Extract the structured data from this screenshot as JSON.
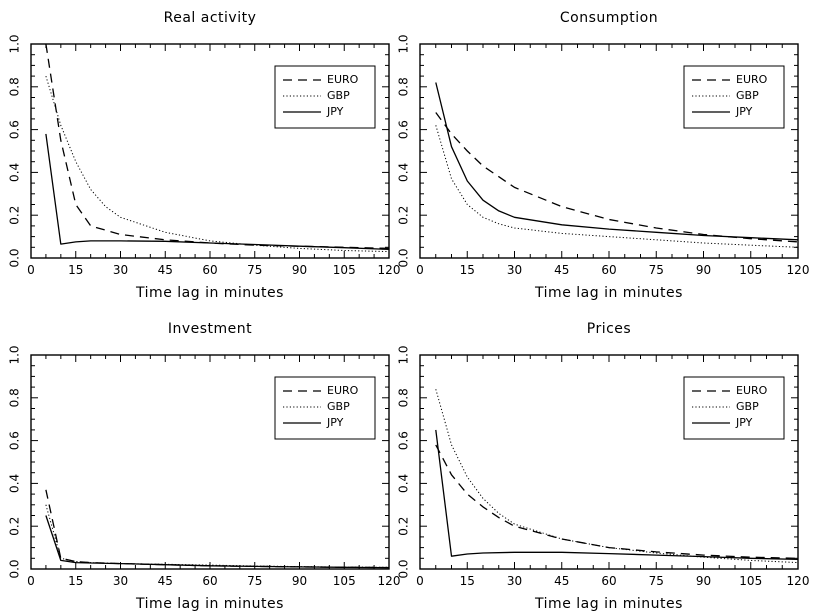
{
  "chart_data": [
    {
      "type": "line",
      "title": "Real activity",
      "xlabel": "Time lag in minutes",
      "ylabel": "",
      "xlim": [
        0,
        120
      ],
      "ylim": [
        0,
        1.0
      ],
      "xticks": [
        "0",
        "15",
        "30",
        "45",
        "60",
        "75",
        "90",
        "105",
        "120"
      ],
      "yticks": [
        "0.0",
        "0.2",
        "0.4",
        "0.6",
        "0.8",
        "1.0"
      ],
      "legend": "top-right",
      "series": [
        {
          "name": "EURO",
          "style": "dashed",
          "x": [
            5,
            10,
            15,
            20,
            30,
            45,
            60,
            75,
            90,
            105,
            120
          ],
          "y": [
            1.0,
            0.55,
            0.25,
            0.15,
            0.11,
            0.085,
            0.07,
            0.06,
            0.055,
            0.05,
            0.045
          ]
        },
        {
          "name": "GBP",
          "style": "dotted",
          "x": [
            5,
            10,
            15,
            20,
            25,
            30,
            45,
            60,
            75,
            90,
            105,
            120
          ],
          "y": [
            0.85,
            0.62,
            0.45,
            0.32,
            0.24,
            0.19,
            0.12,
            0.08,
            0.06,
            0.045,
            0.035,
            0.03
          ]
        },
        {
          "name": "JPY",
          "style": "solid",
          "x": [
            5,
            10,
            15,
            20,
            30,
            45,
            60,
            75,
            90,
            105,
            120
          ],
          "y": [
            0.58,
            0.065,
            0.075,
            0.08,
            0.08,
            0.078,
            0.07,
            0.063,
            0.055,
            0.048,
            0.04
          ]
        }
      ]
    },
    {
      "type": "line",
      "title": "Consumption",
      "xlabel": "Time lag in minutes",
      "ylabel": "",
      "xlim": [
        0,
        120
      ],
      "ylim": [
        0,
        1.0
      ],
      "xticks": [
        "0",
        "15",
        "30",
        "45",
        "60",
        "75",
        "90",
        "105",
        "120"
      ],
      "yticks": [
        "0.0",
        "0.2",
        "0.4",
        "0.6",
        "0.8",
        "1.0"
      ],
      "legend": "top-right",
      "series": [
        {
          "name": "EURO",
          "style": "dashed",
          "x": [
            5,
            10,
            15,
            20,
            25,
            30,
            45,
            60,
            75,
            90,
            105,
            120
          ],
          "y": [
            0.68,
            0.58,
            0.5,
            0.43,
            0.38,
            0.33,
            0.24,
            0.18,
            0.14,
            0.11,
            0.09,
            0.075
          ]
        },
        {
          "name": "GBP",
          "style": "dotted",
          "x": [
            5,
            10,
            15,
            20,
            25,
            30,
            45,
            60,
            75,
            90,
            105,
            120
          ],
          "y": [
            0.62,
            0.37,
            0.25,
            0.19,
            0.16,
            0.14,
            0.115,
            0.1,
            0.085,
            0.07,
            0.06,
            0.05
          ]
        },
        {
          "name": "JPY",
          "style": "solid",
          "x": [
            5,
            10,
            15,
            20,
            25,
            30,
            45,
            60,
            75,
            90,
            105,
            120
          ],
          "y": [
            0.82,
            0.52,
            0.36,
            0.27,
            0.22,
            0.19,
            0.155,
            0.135,
            0.12,
            0.105,
            0.095,
            0.085
          ]
        }
      ]
    },
    {
      "type": "line",
      "title": "Investment",
      "xlabel": "Time lag in minutes",
      "ylabel": "",
      "xlim": [
        0,
        120
      ],
      "ylim": [
        0,
        1.0
      ],
      "xticks": [
        "0",
        "15",
        "30",
        "45",
        "60",
        "75",
        "90",
        "105",
        "120"
      ],
      "yticks": [
        "0.0",
        "0.2",
        "0.4",
        "0.6",
        "0.8",
        "1.0"
      ],
      "legend": "top-right",
      "series": [
        {
          "name": "EURO",
          "style": "dashed",
          "x": [
            5,
            10,
            15,
            20,
            30,
            45,
            60,
            75,
            90,
            105,
            120
          ],
          "y": [
            0.37,
            0.05,
            0.035,
            0.03,
            0.025,
            0.02,
            0.015,
            0.012,
            0.01,
            0.008,
            0.007
          ]
        },
        {
          "name": "GBP",
          "style": "dotted",
          "x": [
            5,
            10,
            15,
            20,
            30,
            45,
            60,
            75,
            90,
            105,
            120
          ],
          "y": [
            0.3,
            0.05,
            0.035,
            0.03,
            0.025,
            0.022,
            0.018,
            0.014,
            0.011,
            0.009,
            0.008
          ]
        },
        {
          "name": "JPY",
          "style": "solid",
          "x": [
            5,
            10,
            15,
            20,
            30,
            45,
            60,
            75,
            90,
            105,
            120
          ],
          "y": [
            0.25,
            0.04,
            0.03,
            0.028,
            0.025,
            0.02,
            0.015,
            0.012,
            0.01,
            0.008,
            0.006
          ]
        }
      ]
    },
    {
      "type": "line",
      "title": "Prices",
      "xlabel": "Time lag in minutes",
      "ylabel": "",
      "xlim": [
        0,
        120
      ],
      "ylim": [
        0,
        1.0
      ],
      "xticks": [
        "0",
        "15",
        "30",
        "45",
        "60",
        "75",
        "90",
        "105",
        "120"
      ],
      "yticks": [
        "0.0",
        "0.2",
        "0.4",
        "0.6",
        "0.8",
        "1.0"
      ],
      "legend": "top-right",
      "series": [
        {
          "name": "EURO",
          "style": "dashed",
          "x": [
            5,
            10,
            15,
            20,
            25,
            30,
            45,
            60,
            75,
            90,
            105,
            120
          ],
          "y": [
            0.58,
            0.44,
            0.35,
            0.29,
            0.24,
            0.2,
            0.14,
            0.1,
            0.08,
            0.065,
            0.055,
            0.05
          ]
        },
        {
          "name": "GBP",
          "style": "dotted",
          "x": [
            5,
            10,
            15,
            20,
            25,
            30,
            45,
            60,
            75,
            90,
            105,
            120
          ],
          "y": [
            0.84,
            0.58,
            0.43,
            0.33,
            0.26,
            0.21,
            0.14,
            0.1,
            0.075,
            0.055,
            0.04,
            0.03
          ]
        },
        {
          "name": "JPY",
          "style": "solid",
          "x": [
            5,
            10,
            15,
            20,
            30,
            45,
            60,
            75,
            90,
            105,
            120
          ],
          "y": [
            0.65,
            0.06,
            0.07,
            0.075,
            0.078,
            0.078,
            0.072,
            0.065,
            0.058,
            0.05,
            0.045
          ]
        }
      ]
    }
  ]
}
